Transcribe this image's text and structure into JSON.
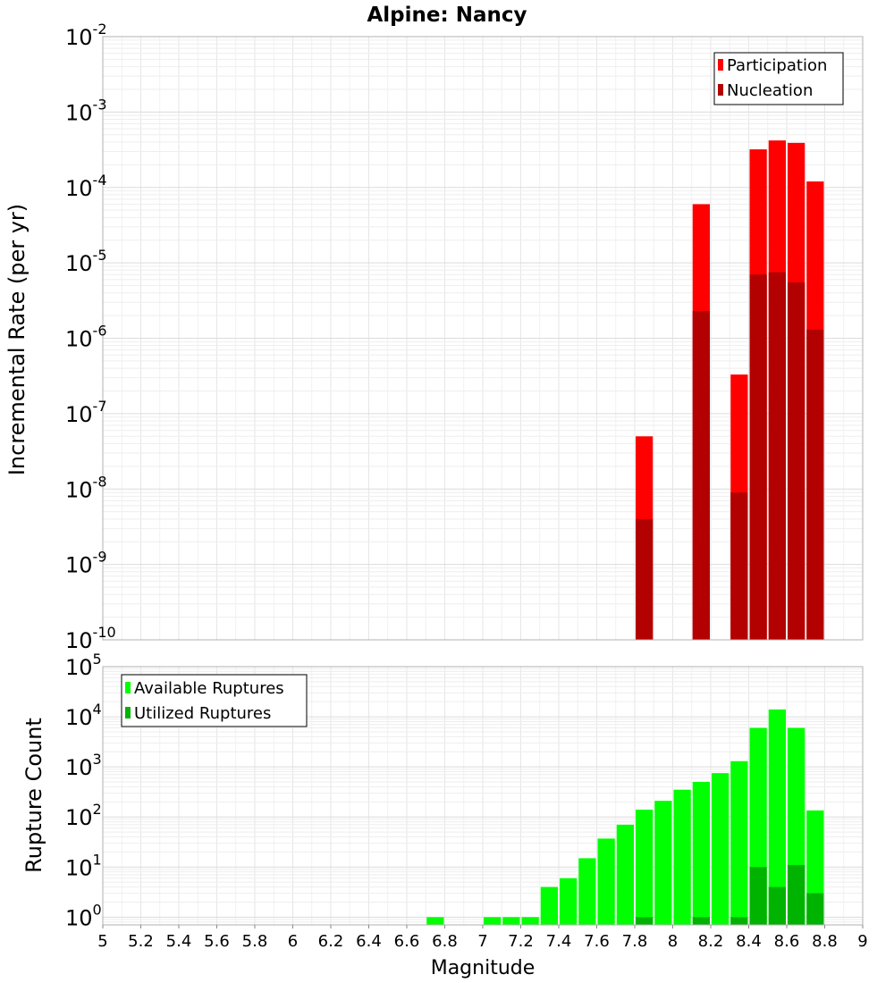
{
  "chart_data": [
    {
      "type": "bar",
      "title": "Alpine: Nancy",
      "xlabel": "",
      "ylabel": "Incremental Rate (per yr)",
      "yscale": "log",
      "ylim": [
        1e-10,
        0.01
      ],
      "xlim": [
        5,
        9
      ],
      "bar_width": 0.1,
      "grid": true,
      "legend_position": "top-right",
      "y_tick_labels": [
        {
          "base": "10",
          "exp": "-10"
        },
        {
          "base": "10",
          "exp": "-9"
        },
        {
          "base": "10",
          "exp": "-8"
        },
        {
          "base": "10",
          "exp": "-7"
        },
        {
          "base": "10",
          "exp": "-6"
        },
        {
          "base": "10",
          "exp": "-5"
        },
        {
          "base": "10",
          "exp": "-4"
        },
        {
          "base": "10",
          "exp": "-3"
        },
        {
          "base": "10",
          "exp": "-2"
        }
      ],
      "series": [
        {
          "name": "Participation",
          "color": "#ff0000",
          "x": [
            7.85,
            8.15,
            8.35,
            8.45,
            8.55,
            8.65,
            8.75
          ],
          "values": [
            5e-08,
            6e-05,
            3.3e-07,
            0.00032,
            0.00042,
            0.00039,
            0.00012
          ]
        },
        {
          "name": "Nucleation",
          "color": "#b30000",
          "x": [
            7.85,
            8.15,
            8.35,
            8.45,
            8.55,
            8.65,
            8.75
          ],
          "values": [
            4e-09,
            2.3e-06,
            9e-09,
            7e-06,
            7.5e-06,
            5.5e-06,
            1.3e-06
          ]
        }
      ]
    },
    {
      "type": "bar",
      "title": "",
      "xlabel": "Magnitude",
      "ylabel": "Rupture Count",
      "yscale": "log",
      "ylim": [
        0.7,
        100000.0
      ],
      "xlim": [
        5,
        9
      ],
      "bar_width": 0.1,
      "grid": true,
      "legend_position": "top-left",
      "y_tick_labels": [
        {
          "base": "10",
          "exp": "0"
        },
        {
          "base": "10",
          "exp": "1"
        },
        {
          "base": "10",
          "exp": "2"
        },
        {
          "base": "10",
          "exp": "3"
        },
        {
          "base": "10",
          "exp": "4"
        },
        {
          "base": "10",
          "exp": "5"
        }
      ],
      "x_ticks": [
        "5",
        "5.2",
        "5.4",
        "5.6",
        "5.8",
        "6",
        "6.2",
        "6.4",
        "6.6",
        "6.8",
        "7",
        "7.2",
        "7.4",
        "7.6",
        "7.8",
        "8",
        "8.2",
        "8.4",
        "8.6",
        "8.8",
        "9"
      ],
      "series": [
        {
          "name": "Available Ruptures",
          "color": "#00ff00",
          "x": [
            6.75,
            7.05,
            7.15,
            7.25,
            7.35,
            7.45,
            7.55,
            7.65,
            7.75,
            7.85,
            7.95,
            8.05,
            8.15,
            8.25,
            8.35,
            8.45,
            8.55,
            8.65,
            8.75
          ],
          "values": [
            1,
            1,
            1,
            1,
            4,
            6,
            15,
            37,
            70,
            140,
            210,
            350,
            500,
            750,
            1300,
            6000,
            14000,
            6000,
            135
          ]
        },
        {
          "name": "Utilized Ruptures",
          "color": "#00b300",
          "x": [
            7.85,
            8.15,
            8.35,
            8.45,
            8.55,
            8.65,
            8.75
          ],
          "values": [
            1,
            1,
            1,
            10,
            4,
            11,
            3
          ]
        }
      ]
    }
  ]
}
